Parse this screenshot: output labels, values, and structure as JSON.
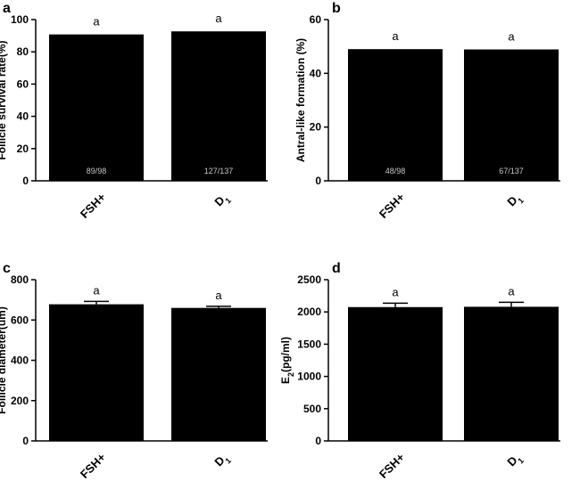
{
  "chart_data": [
    {
      "type": "bar",
      "panel": "a",
      "categories": [
        {
          "text": "FSH+",
          "sub": ""
        },
        {
          "text": "D",
          "sub": "1"
        }
      ],
      "values": [
        90.8,
        92.7
      ],
      "errors": [
        0,
        0
      ],
      "sig": [
        "a",
        "a"
      ],
      "counts": [
        "89/98",
        "127/137"
      ],
      "ylabel": {
        "text": "Follicle survival rate(%)",
        "sub": "",
        "after": ""
      },
      "ylim": [
        0,
        100
      ],
      "yticks": [
        0,
        20,
        40,
        60,
        80,
        100
      ]
    },
    {
      "type": "bar",
      "panel": "b",
      "categories": [
        {
          "text": "FSH+",
          "sub": ""
        },
        {
          "text": "D",
          "sub": "1"
        }
      ],
      "values": [
        49.0,
        48.9
      ],
      "errors": [
        0,
        0
      ],
      "sig": [
        "a",
        "a"
      ],
      "counts": [
        "48/98",
        "67/137"
      ],
      "ylabel": {
        "text": "Antral-like formation (%)",
        "sub": "",
        "after": ""
      },
      "ylim": [
        0,
        60
      ],
      "yticks": [
        0,
        20,
        40,
        60
      ]
    },
    {
      "type": "bar",
      "panel": "c",
      "categories": [
        {
          "text": "FSH+",
          "sub": ""
        },
        {
          "text": "D",
          "sub": "1"
        }
      ],
      "values": [
        678,
        660
      ],
      "errors": [
        14,
        8
      ],
      "sig": [
        "a",
        "a"
      ],
      "counts": [
        "",
        ""
      ],
      "ylabel": {
        "text": "Follicle diameter(um)",
        "sub": "",
        "after": ""
      },
      "ylim": [
        0,
        800
      ],
      "yticks": [
        0,
        200,
        400,
        600,
        800
      ]
    },
    {
      "type": "bar",
      "panel": "d",
      "categories": [
        {
          "text": "FSH+",
          "sub": ""
        },
        {
          "text": "D",
          "sub": "1"
        }
      ],
      "values": [
        2075,
        2080
      ],
      "errors": [
        60,
        70
      ],
      "sig": [
        "a",
        "a"
      ],
      "counts": [
        "",
        ""
      ],
      "ylabel": {
        "text": "E",
        "sub": "2",
        "after": "(pg/ml)"
      },
      "ylim": [
        0,
        2500
      ],
      "yticks": [
        0,
        500,
        1000,
        1500,
        2000,
        2500
      ]
    }
  ]
}
